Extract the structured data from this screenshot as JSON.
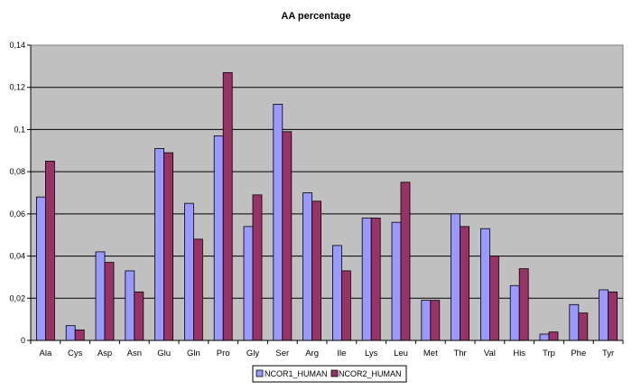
{
  "chart_data": {
    "type": "bar",
    "title": "AA percentage",
    "xlabel": "",
    "ylabel": "",
    "categories": [
      "Ala",
      "Cys",
      "Asp",
      "Asn",
      "Glu",
      "Gln",
      "Pro",
      "Gly",
      "Ser",
      "Arg",
      "Ile",
      "Lys",
      "Leu",
      "Met",
      "Thr",
      "Val",
      "His",
      "Trp",
      "Phe",
      "Tyr"
    ],
    "series": [
      {
        "name": "NCOR1_HUMAN",
        "color": "#9999ff",
        "values": [
          0.068,
          0.007,
          0.042,
          0.033,
          0.091,
          0.065,
          0.097,
          0.054,
          0.112,
          0.07,
          0.045,
          0.058,
          0.056,
          0.019,
          0.06,
          0.053,
          0.026,
          0.003,
          0.017,
          0.024
        ]
      },
      {
        "name": "NCOR2_HUMAN",
        "color": "#993366",
        "values": [
          0.085,
          0.005,
          0.037,
          0.023,
          0.089,
          0.048,
          0.127,
          0.069,
          0.099,
          0.066,
          0.033,
          0.058,
          0.075,
          0.019,
          0.054,
          0.04,
          0.034,
          0.004,
          0.013,
          0.023
        ]
      }
    ],
    "ylim": [
      0,
      0.14
    ],
    "yticks": [
      0,
      0.02,
      0.04,
      0.06,
      0.08,
      0.1,
      0.12,
      0.14
    ],
    "ytick_labels": [
      "0",
      "0,02",
      "0,04",
      "0,06",
      "0,08",
      "0,1",
      "0,12",
      "0,14"
    ],
    "grid": true,
    "legend_position": "bottom-center",
    "plot_background": "#c0c0c0",
    "gridline_color": "#000000"
  }
}
